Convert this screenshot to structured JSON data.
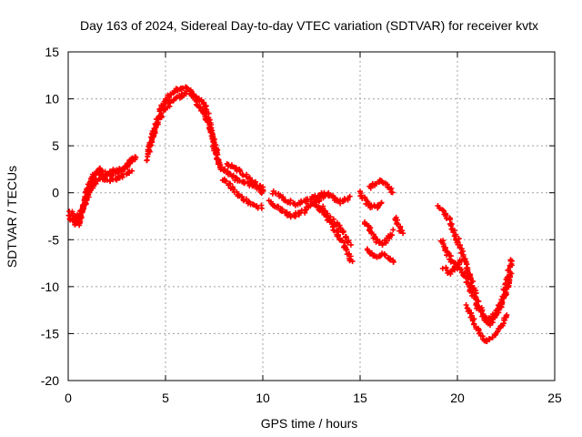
{
  "chart_data": {
    "type": "scatter",
    "title": "Day 163 of 2024, Sidereal Day-to-day VTEC variation (SDTVAR) for receiver kvtx",
    "xlabel": "GPS time / hours",
    "ylabel": "SDTVAR / TECUs",
    "xlim": [
      0,
      25
    ],
    "ylim": [
      -20,
      15
    ],
    "x_ticks": [
      0,
      5,
      10,
      15,
      20,
      25
    ],
    "y_ticks": [
      -20,
      -15,
      -10,
      -5,
      0,
      5,
      10,
      15
    ],
    "grid": true,
    "marker": "+",
    "series": [
      {
        "name": "SDTVAR",
        "color": "#ff0000",
        "tracks": [
          {
            "x": [
              0.0,
              0.3,
              0.6,
              0.8,
              1.0,
              1.2,
              1.5,
              1.8,
              2.0,
              2.3,
              2.6,
              2.9,
              3.2,
              3.5
            ],
            "y": [
              -2.5,
              -3.0,
              -2.8,
              -1.0,
              0.5,
              1.5,
              2.3,
              2.0,
              1.8,
              2.1,
              2.3,
              2.6,
              3.3,
              3.8
            ]
          },
          {
            "x": [
              0.1,
              0.4,
              0.7,
              1.0,
              1.3,
              1.6,
              2.0,
              2.4,
              2.8,
              3.1,
              3.4
            ],
            "y": [
              -2.0,
              -2.5,
              -2.0,
              -0.2,
              1.8,
              2.5,
              2.0,
              2.4,
              2.5,
              3.0,
              4.0
            ]
          },
          {
            "x": [
              0.2,
              0.5,
              0.8,
              1.1,
              1.4,
              1.7,
              2.1,
              2.5,
              2.9,
              3.3
            ],
            "y": [
              -3.0,
              -3.5,
              -1.5,
              0.0,
              1.2,
              1.6,
              1.3,
              1.6,
              1.8,
              2.4
            ]
          },
          {
            "x": [
              4.0,
              4.3,
              4.6,
              4.9,
              5.2,
              5.5,
              5.8,
              6.1,
              6.4,
              6.7,
              7.0,
              7.2,
              7.4,
              7.6,
              7.8
            ],
            "y": [
              3.5,
              5.5,
              7.5,
              8.8,
              9.5,
              10.0,
              10.3,
              10.8,
              10.5,
              10.0,
              9.5,
              8.0,
              6.0,
              4.5,
              3.0
            ]
          },
          {
            "x": [
              4.1,
              4.4,
              4.7,
              5.0,
              5.3,
              5.6,
              5.9,
              6.2,
              6.5,
              6.8,
              7.1,
              7.3,
              7.5,
              7.7,
              7.9
            ],
            "y": [
              4.5,
              6.5,
              8.5,
              9.8,
              10.5,
              11.0,
              11.2,
              11.0,
              10.0,
              9.0,
              8.0,
              6.5,
              5.0,
              3.5,
              2.3
            ]
          },
          {
            "x": [
              8.0,
              8.3,
              8.6,
              8.9,
              9.2,
              9.5,
              9.8,
              10.0
            ],
            "y": [
              2.5,
              2.0,
              1.5,
              1.2,
              1.0,
              0.8,
              0.5,
              0.0
            ]
          },
          {
            "x": [
              8.0,
              8.3,
              8.6,
              8.9,
              9.2,
              9.5,
              9.8,
              10.0
            ],
            "y": [
              1.5,
              0.8,
              0.0,
              -0.5,
              -1.0,
              -1.3,
              -1.5,
              -1.5
            ]
          },
          {
            "x": [
              8.1,
              8.4,
              8.7,
              9.0,
              9.3,
              9.6,
              9.9,
              10.1
            ],
            "y": [
              3.0,
              2.8,
              2.5,
              2.0,
              1.5,
              1.0,
              0.5,
              0.2
            ]
          },
          {
            "x": [
              10.3,
              10.6,
              10.9,
              11.2,
              11.5,
              11.8,
              12.1,
              12.4,
              12.7,
              13.0,
              13.3,
              13.6,
              13.9,
              14.2,
              14.5
            ],
            "y": [
              -1.0,
              -1.3,
              -1.8,
              -2.2,
              -2.5,
              -2.3,
              -2.0,
              -1.5,
              -1.0,
              -0.5,
              0.0,
              -0.5,
              -1.0,
              -0.8,
              -0.5
            ]
          },
          {
            "x": [
              10.5,
              10.8,
              11.1,
              11.4,
              11.7,
              12.0,
              12.3,
              12.6,
              12.9,
              13.2
            ],
            "y": [
              0.0,
              -0.3,
              -0.8,
              -1.0,
              -1.2,
              -1.0,
              -0.8,
              -0.5,
              -0.3,
              0.0
            ]
          },
          {
            "x": [
              12.5,
              12.8,
              13.1,
              13.4,
              13.7,
              14.0,
              14.3,
              14.6
            ],
            "y": [
              -1.0,
              -1.5,
              -2.0,
              -3.0,
              -4.0,
              -5.0,
              -6.0,
              -7.5
            ]
          },
          {
            "x": [
              13.0,
              13.3,
              13.6,
              13.9,
              14.2,
              14.5
            ],
            "y": [
              -1.5,
              -2.5,
              -3.0,
              -3.5,
              -4.5,
              -5.5
            ]
          },
          {
            "x": [
              15.0,
              15.3,
              15.6,
              15.9,
              16.2
            ],
            "y": [
              0.0,
              -1.0,
              -1.5,
              -1.5,
              -1.0
            ]
          },
          {
            "x": [
              15.2,
              15.5,
              15.8,
              16.1,
              16.4,
              16.7
            ],
            "y": [
              -3.0,
              -4.0,
              -5.0,
              -5.5,
              -5.0,
              -4.0
            ]
          },
          {
            "x": [
              15.5,
              15.8,
              16.1,
              16.4,
              16.7
            ],
            "y": [
              0.5,
              1.0,
              1.3,
              0.8,
              0.0
            ]
          },
          {
            "x": [
              15.3,
              15.6,
              15.9,
              16.2,
              16.5,
              16.8
            ],
            "y": [
              -6.0,
              -6.5,
              -6.8,
              -6.5,
              -7.0,
              -7.5
            ]
          },
          {
            "x": [
              16.8,
              17.0,
              17.2
            ],
            "y": [
              -2.5,
              -3.5,
              -4.5
            ]
          },
          {
            "x": [
              19.0,
              19.3,
              19.6,
              19.9,
              20.2,
              20.5,
              20.8,
              21.1,
              21.4,
              21.7,
              22.0,
              22.3,
              22.6,
              22.8
            ],
            "y": [
              -1.5,
              -2.0,
              -3.0,
              -4.5,
              -6.0,
              -8.0,
              -10.0,
              -12.0,
              -13.5,
              -14.0,
              -13.0,
              -11.5,
              -9.0,
              -7.0
            ]
          },
          {
            "x": [
              19.2,
              19.5,
              19.8,
              20.1,
              20.4,
              20.7,
              21.0,
              21.3,
              21.6,
              21.9,
              22.2,
              22.5,
              22.8
            ],
            "y": [
              -5.0,
              -6.5,
              -7.5,
              -8.0,
              -9.0,
              -10.5,
              -12.0,
              -13.0,
              -13.5,
              -13.0,
              -12.0,
              -10.5,
              -8.5
            ]
          },
          {
            "x": [
              20.5,
              20.8,
              21.1,
              21.4,
              21.7,
              22.0,
              22.3,
              22.6
            ],
            "y": [
              -12.0,
              -13.5,
              -15.0,
              -15.8,
              -15.5,
              -15.0,
              -14.0,
              -13.0
            ]
          },
          {
            "x": [
              19.3,
              19.6,
              19.9,
              20.2
            ],
            "y": [
              -8.0,
              -8.5,
              -8.0,
              -7.0
            ]
          }
        ]
      }
    ]
  }
}
